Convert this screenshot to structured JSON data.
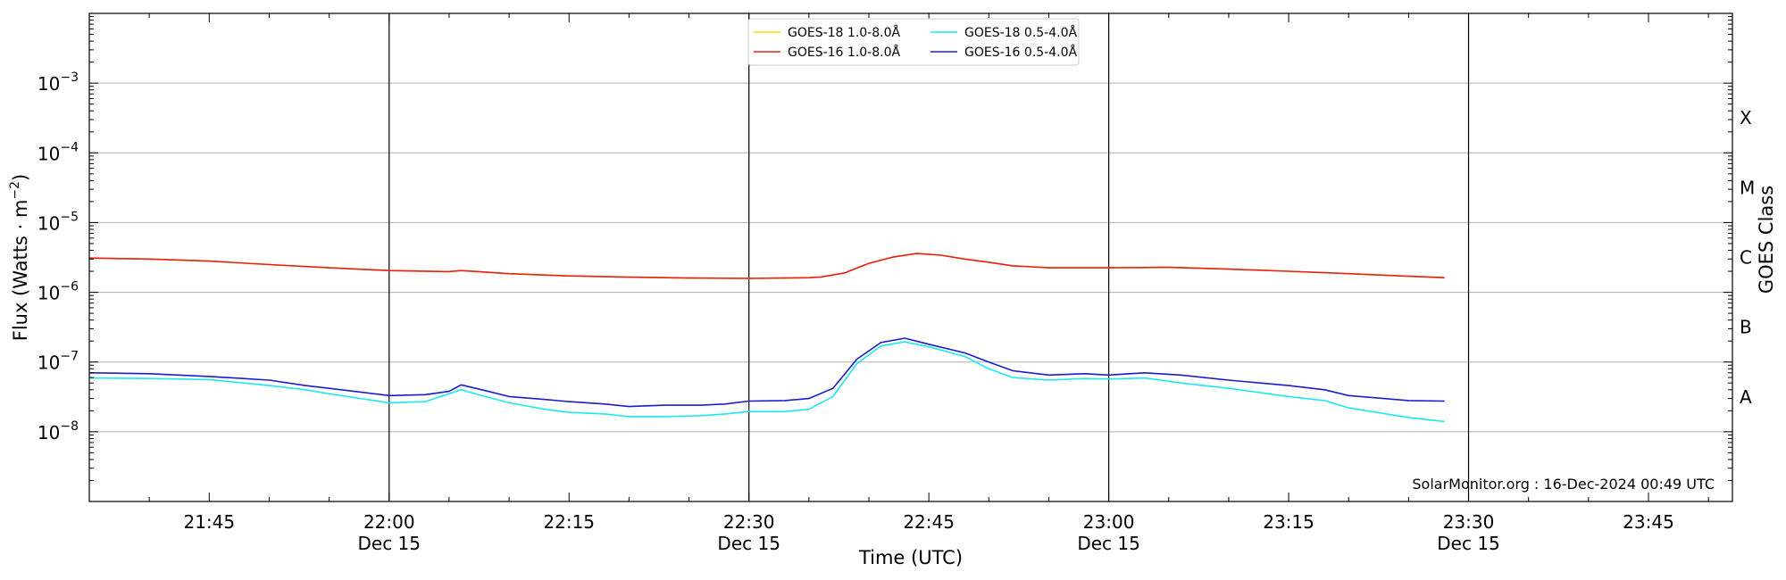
{
  "chart_data": {
    "type": "line",
    "xlabel": "Time (UTC)",
    "ylabel_main": "Flux (Watts · m",
    "ylabel_sup": "−2",
    "ylabel_close": ")",
    "y2label": "GOES Class",
    "credit": "SolarMonitor.org : 16-Dec-2024 00:49 UTC",
    "yscale": "log",
    "xlim": [
      "21:35",
      "23:52"
    ],
    "ylim": [
      1e-09,
      0.01
    ],
    "grid": "horizontal",
    "legend_placement": "top-center",
    "x_ticks": [
      {
        "time": "21:45",
        "label": "21:45",
        "date": ""
      },
      {
        "time": "22:00",
        "label": "22:00",
        "date": "Dec 15"
      },
      {
        "time": "22:15",
        "label": "22:15",
        "date": ""
      },
      {
        "time": "22:30",
        "label": "22:30",
        "date": "Dec 15"
      },
      {
        "time": "22:45",
        "label": "22:45",
        "date": ""
      },
      {
        "time": "23:00",
        "label": "23:00",
        "date": "Dec 15"
      },
      {
        "time": "23:15",
        "label": "23:15",
        "date": ""
      },
      {
        "time": "23:30",
        "label": "23:30",
        "date": "Dec 15"
      },
      {
        "time": "23:45",
        "label": "23:45",
        "date": ""
      }
    ],
    "y_ticks": [
      {
        "value": 1e-08,
        "label": "10",
        "exp": "−8"
      },
      {
        "value": 1e-07,
        "label": "10",
        "exp": "−7"
      },
      {
        "value": 1e-06,
        "label": "10",
        "exp": "−6"
      },
      {
        "value": 1e-05,
        "label": "10",
        "exp": "−5"
      },
      {
        "value": 0.0001,
        "label": "10",
        "exp": "−4"
      },
      {
        "value": 0.001,
        "label": "10",
        "exp": "−3"
      }
    ],
    "goes_classes": [
      {
        "label": "A",
        "value": 3.16e-08
      },
      {
        "label": "B",
        "value": 3.16e-07
      },
      {
        "label": "C",
        "value": 3.16e-06
      },
      {
        "label": "M",
        "value": 3.16e-05
      },
      {
        "label": "X",
        "value": 0.000316
      }
    ],
    "vlines": [
      "22:00",
      "22:30",
      "23:00",
      "23:30"
    ],
    "series": [
      {
        "name": "GOES-18 1.0-8.0Å",
        "color": "#ffd700",
        "times": [
          "21:35",
          "21:40",
          "21:45",
          "21:50",
          "21:55",
          "22:00",
          "22:05",
          "22:06",
          "22:10",
          "22:15",
          "22:20",
          "22:25",
          "22:30",
          "22:35",
          "22:36",
          "22:38",
          "22:40",
          "22:42",
          "22:44",
          "22:46",
          "22:48",
          "22:50",
          "22:52",
          "22:55",
          "23:00",
          "23:05",
          "23:10",
          "23:15",
          "23:20",
          "23:25",
          "23:28"
        ],
        "values": [
          3.1e-06,
          3e-06,
          2.8e-06,
          2.5e-06,
          2.25e-06,
          2.05e-06,
          1.98e-06,
          2.05e-06,
          1.85e-06,
          1.72e-06,
          1.65e-06,
          1.6e-06,
          1.58e-06,
          1.62e-06,
          1.66e-06,
          1.9e-06,
          2.6e-06,
          3.2e-06,
          3.6e-06,
          3.4e-06,
          3e-06,
          2.7e-06,
          2.4e-06,
          2.25e-06,
          2.25e-06,
          2.28e-06,
          2.15e-06,
          2e-06,
          1.85e-06,
          1.7e-06,
          1.62e-06
        ]
      },
      {
        "name": "GOES-16 1.0-8.0Å",
        "color": "#e8201a",
        "times": [
          "21:35",
          "21:40",
          "21:45",
          "21:50",
          "21:55",
          "22:00",
          "22:05",
          "22:06",
          "22:10",
          "22:15",
          "22:20",
          "22:25",
          "22:30",
          "22:35",
          "22:36",
          "22:38",
          "22:40",
          "22:42",
          "22:44",
          "22:46",
          "22:48",
          "22:50",
          "22:52",
          "22:55",
          "23:00",
          "23:05",
          "23:10",
          "23:15",
          "23:20",
          "23:25",
          "23:28"
        ],
        "values": [
          3.1e-06,
          3e-06,
          2.8e-06,
          2.5e-06,
          2.25e-06,
          2.05e-06,
          1.98e-06,
          2.05e-06,
          1.85e-06,
          1.72e-06,
          1.65e-06,
          1.6e-06,
          1.58e-06,
          1.62e-06,
          1.66e-06,
          1.9e-06,
          2.6e-06,
          3.2e-06,
          3.6e-06,
          3.4e-06,
          3e-06,
          2.7e-06,
          2.4e-06,
          2.25e-06,
          2.25e-06,
          2.28e-06,
          2.15e-06,
          2e-06,
          1.85e-06,
          1.7e-06,
          1.62e-06
        ]
      },
      {
        "name": "GOES-18 0.5-4.0Å",
        "color": "#1ee8f0",
        "times": [
          "21:35",
          "21:40",
          "21:45",
          "21:50",
          "21:53",
          "21:55",
          "22:00",
          "22:03",
          "22:06",
          "22:08",
          "22:10",
          "22:13",
          "22:15",
          "22:18",
          "22:20",
          "22:23",
          "22:26",
          "22:28",
          "22:30",
          "22:33",
          "22:35",
          "22:37",
          "22:39",
          "22:41",
          "22:43",
          "22:45",
          "22:48",
          "22:50",
          "22:52",
          "22:55",
          "22:58",
          "23:00",
          "23:03",
          "23:06",
          "23:10",
          "23:15",
          "23:18",
          "23:20",
          "23:25",
          "23:28"
        ],
        "values": [
          5.9e-08,
          5.8e-08,
          5.6e-08,
          4.6e-08,
          4e-08,
          3.5e-08,
          2.6e-08,
          2.7e-08,
          4e-08,
          3.2e-08,
          2.6e-08,
          2.1e-08,
          1.9e-08,
          1.8e-08,
          1.65e-08,
          1.65e-08,
          1.7e-08,
          1.8e-08,
          1.95e-08,
          1.95e-08,
          2.1e-08,
          3.2e-08,
          9.5e-08,
          1.7e-07,
          1.95e-07,
          1.65e-07,
          1.2e-07,
          8e-08,
          6e-08,
          5.5e-08,
          5.8e-08,
          5.7e-08,
          5.9e-08,
          5e-08,
          4.2e-08,
          3.2e-08,
          2.8e-08,
          2.2e-08,
          1.6e-08,
          1.4e-08
        ]
      },
      {
        "name": "GOES-16 0.5-4.0Å",
        "color": "#1c1ccc",
        "times": [
          "21:35",
          "21:40",
          "21:45",
          "21:50",
          "21:53",
          "21:55",
          "22:00",
          "22:03",
          "22:05",
          "22:06",
          "22:08",
          "22:10",
          "22:13",
          "22:15",
          "22:18",
          "22:20",
          "22:23",
          "22:26",
          "22:28",
          "22:30",
          "22:33",
          "22:35",
          "22:37",
          "22:39",
          "22:41",
          "22:43",
          "22:45",
          "22:48",
          "22:50",
          "22:52",
          "22:55",
          "22:58",
          "23:00",
          "23:03",
          "23:06",
          "23:10",
          "23:15",
          "23:18",
          "23:20",
          "23:25",
          "23:28"
        ],
        "values": [
          7e-08,
          6.8e-08,
          6.2e-08,
          5.5e-08,
          4.6e-08,
          4.2e-08,
          3.3e-08,
          3.4e-08,
          3.8e-08,
          4.7e-08,
          3.9e-08,
          3.2e-08,
          2.9e-08,
          2.7e-08,
          2.5e-08,
          2.3e-08,
          2.4e-08,
          2.4e-08,
          2.5e-08,
          2.75e-08,
          2.8e-08,
          3e-08,
          4.2e-08,
          1.1e-07,
          1.9e-07,
          2.2e-07,
          1.8e-07,
          1.35e-07,
          1e-07,
          7.5e-08,
          6.5e-08,
          6.8e-08,
          6.5e-08,
          7e-08,
          6.5e-08,
          5.5e-08,
          4.6e-08,
          4e-08,
          3.3e-08,
          2.8e-08,
          2.75e-08
        ]
      }
    ]
  }
}
